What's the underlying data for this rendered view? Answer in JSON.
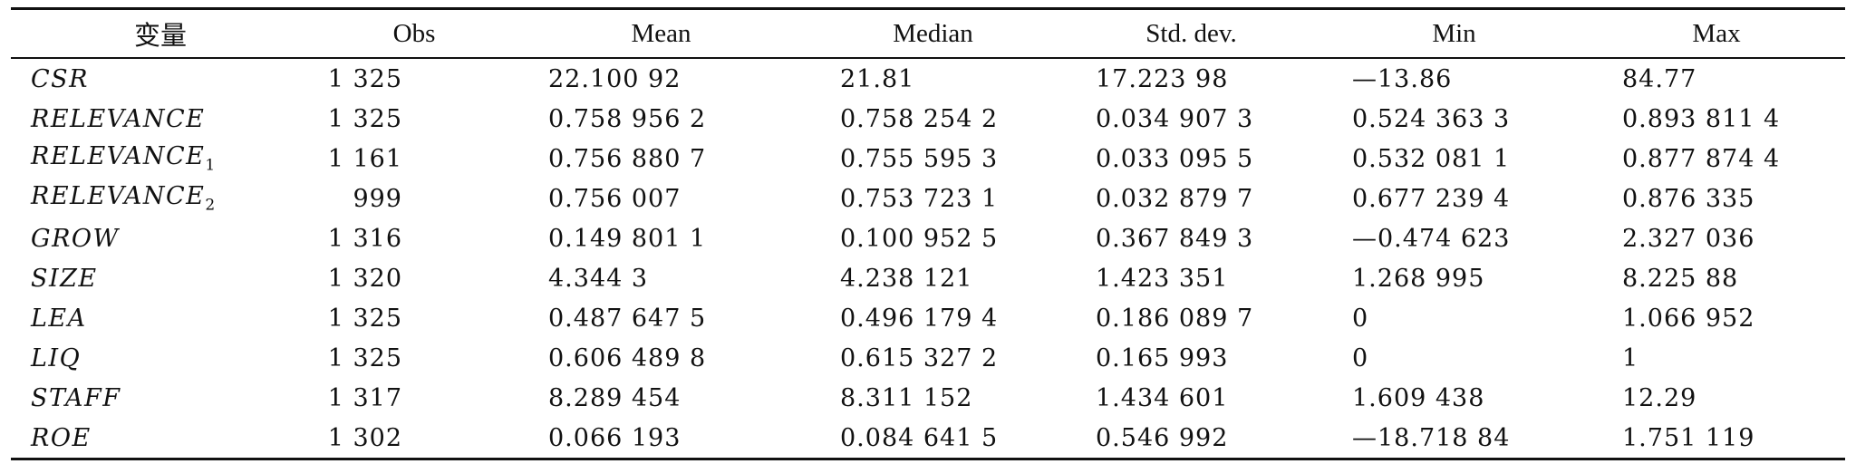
{
  "table": {
    "headers": [
      "变量",
      "Obs",
      "Mean",
      "Median",
      "Std. dev.",
      "Min",
      "Max"
    ],
    "rows": [
      {
        "var": "CSR",
        "sub": "",
        "obs": "1 325",
        "mean": "22.100 92",
        "median": "21.81",
        "sd": "17.223 98",
        "min": "—13.86",
        "max": "84.77"
      },
      {
        "var": "RELEVANCE",
        "sub": "",
        "obs": "1 325",
        "mean": "0.758 956 2",
        "median": "0.758 254 2",
        "sd": "0.034 907 3",
        "min": "0.524 363 3",
        "max": "0.893 811 4"
      },
      {
        "var": "RELEVANCE",
        "sub": "1",
        "obs": "1 161",
        "mean": "0.756 880 7",
        "median": "0.755 595 3",
        "sd": "0.033 095 5",
        "min": "0.532 081 1",
        "max": "0.877 874 4"
      },
      {
        "var": "RELEVANCE",
        "sub": "2",
        "obs": "999",
        "mean": "0.756 007",
        "median": "0.753 723 1",
        "sd": "0.032 879 7",
        "min": "0.677 239 4",
        "max": "0.876 335"
      },
      {
        "var": "GROW",
        "sub": "",
        "obs": "1 316",
        "mean": "0.149 801 1",
        "median": "0.100 952 5",
        "sd": "0.367 849 3",
        "min": "—0.474 623",
        "max": "2.327 036"
      },
      {
        "var": "SIZE",
        "sub": "",
        "obs": "1 320",
        "mean": "4.344 3",
        "median": "4.238 121",
        "sd": "1.423 351",
        "min": "1.268 995",
        "max": "8.225 88"
      },
      {
        "var": "LEA",
        "sub": "",
        "obs": "1 325",
        "mean": "0.487 647 5",
        "median": "0.496 179 4",
        "sd": "0.186 089 7",
        "min": "0",
        "max": "1.066 952"
      },
      {
        "var": "LIQ",
        "sub": "",
        "obs": "1 325",
        "mean": "0.606 489 8",
        "median": "0.615 327 2",
        "sd": "0.165 993",
        "min": "0",
        "max": "1"
      },
      {
        "var": "STAFF",
        "sub": "",
        "obs": "1 317",
        "mean": "8.289 454",
        "median": "8.311 152",
        "sd": "1.434 601",
        "min": "1.609 438",
        "max": "12.29"
      },
      {
        "var": "ROE",
        "sub": "",
        "obs": "1 302",
        "mean": "0.066 193",
        "median": "0.084 641 5",
        "sd": "0.546 992",
        "min": "—18.718 84",
        "max": "1.751 119"
      }
    ]
  }
}
